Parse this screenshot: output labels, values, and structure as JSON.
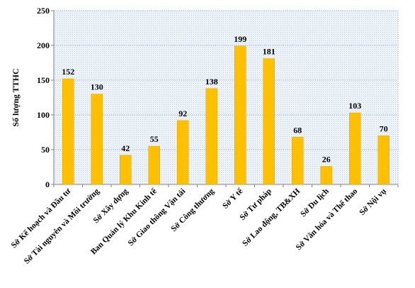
{
  "chart_data": {
    "type": "bar",
    "title": "",
    "xlabel": "",
    "ylabel": "Số lượng TTHC",
    "ylim": [
      0,
      250
    ],
    "yticks": [
      0,
      50,
      100,
      150,
      200,
      250
    ],
    "grid": true,
    "categories": [
      "Sở Kế hoạch và Đầu tư",
      "Sở Tài nguyên và Môi trường",
      "Sở Xây dựng",
      "Ban Quản lý Khu Kinh tế",
      "Sở Giao thông Vận tải",
      "Sở Công thương",
      "Sở Y tế",
      "Sở Tư pháp",
      "Sở Lao động, TB&XH",
      "Sở Du lịch",
      "Sở Văn hóa và Thể thao",
      "Sở Nội vụ"
    ],
    "values": [
      152,
      130,
      42,
      55,
      92,
      138,
      199,
      181,
      68,
      26,
      103,
      70
    ],
    "data_labels": [
      "152",
      "130",
      "42",
      "55",
      "92",
      "138",
      "199",
      "181",
      "68",
      "26",
      "103",
      "70"
    ],
    "colors": {
      "bar": "#FFC000",
      "bar_edge": "#E0A800",
      "plot_bg": "#EEF4FB",
      "grid": "#8FA9D6",
      "axis": "#808080"
    }
  }
}
